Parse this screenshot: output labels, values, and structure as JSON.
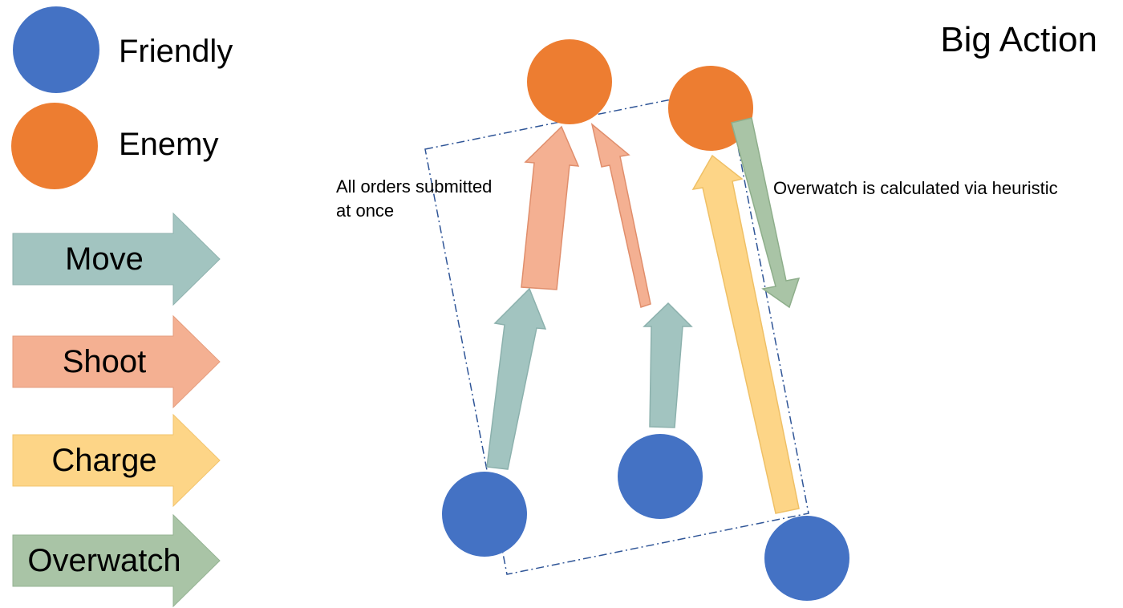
{
  "title": "Big Action",
  "legend": {
    "friendly": {
      "label": "Friendly",
      "color": "#4472C4"
    },
    "enemy": {
      "label": "Enemy",
      "color": "#ED7D31"
    }
  },
  "arrow_keys": [
    {
      "id": "move",
      "label": "Move",
      "color": "#A2C4C0"
    },
    {
      "id": "shoot",
      "label": "Shoot",
      "color": "#F4B092"
    },
    {
      "id": "charge",
      "label": "Charge",
      "color": "#FDD587"
    },
    {
      "id": "overwatch",
      "label": "Overwatch",
      "color": "#A9C4A6"
    }
  ],
  "annotations": {
    "orders_note_line1": "All orders submitted",
    "orders_note_line2": "at once",
    "overwatch_note": "Overwatch is calculated via heuristic"
  }
}
